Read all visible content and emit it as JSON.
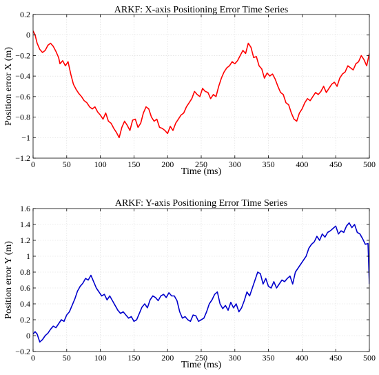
{
  "chart_data": [
    {
      "type": "line",
      "title": "ARKF: X-axis Positioning Error Time Series",
      "xlabel": "Time (ms)",
      "ylabel": "Position error X (m)",
      "xlim": [
        0,
        500
      ],
      "ylim": [
        -1.2,
        0.2
      ],
      "xticks": [
        0,
        50,
        100,
        150,
        200,
        250,
        300,
        350,
        400,
        450,
        500
      ],
      "yticks": [
        -1.2,
        -1,
        -0.8,
        -0.6,
        -0.4,
        -0.2,
        0,
        0.2
      ],
      "xtick_labels": [
        "0",
        "50",
        "100",
        "150",
        "200",
        "250",
        "300",
        "350",
        "400",
        "450",
        "500"
      ],
      "ytick_labels": [
        "−1.2",
        "−1",
        "−0.8",
        "−0.6",
        "−0.4",
        "−0.2",
        "0",
        "0.2"
      ],
      "grid": true,
      "color": "#ff0000",
      "series": [
        {
          "x": [
            0,
            3,
            6,
            10,
            14,
            18,
            22,
            26,
            30,
            34,
            38,
            40,
            44,
            48,
            52,
            56,
            60,
            64,
            68,
            72,
            76,
            80,
            84,
            88,
            92,
            96,
            100,
            104,
            108,
            112,
            116,
            120,
            124,
            128,
            132,
            136,
            140,
            144,
            148,
            152,
            156,
            160,
            164,
            168,
            172,
            176,
            180,
            184,
            188,
            192,
            196,
            200,
            204,
            208,
            212,
            216,
            220,
            224,
            228,
            232,
            236,
            240,
            244,
            248,
            252,
            256,
            260,
            264,
            268,
            272,
            276,
            280,
            284,
            288,
            292,
            296,
            300,
            304,
            308,
            312,
            316,
            320,
            324,
            328,
            332,
            336,
            340,
            344,
            348,
            352,
            356,
            360,
            364,
            368,
            372,
            376,
            380,
            384,
            388,
            392,
            396,
            400,
            404,
            408,
            412,
            416,
            420,
            424,
            428,
            432,
            436,
            440,
            444,
            448,
            452,
            456,
            460,
            464,
            468,
            472,
            476,
            480,
            484,
            488,
            492,
            496,
            500
          ],
          "y": [
            0.04,
            0.0,
            -0.08,
            -0.14,
            -0.17,
            -0.15,
            -0.1,
            -0.08,
            -0.11,
            -0.16,
            -0.22,
            -0.28,
            -0.25,
            -0.3,
            -0.26,
            -0.38,
            -0.48,
            -0.53,
            -0.57,
            -0.6,
            -0.64,
            -0.66,
            -0.7,
            -0.72,
            -0.7,
            -0.75,
            -0.78,
            -0.82,
            -0.76,
            -0.84,
            -0.86,
            -0.91,
            -0.95,
            -1.0,
            -0.9,
            -0.84,
            -0.88,
            -0.93,
            -0.83,
            -0.82,
            -0.9,
            -0.86,
            -0.76,
            -0.7,
            -0.72,
            -0.8,
            -0.84,
            -0.82,
            -0.9,
            -0.91,
            -0.93,
            -0.96,
            -0.89,
            -0.93,
            -0.86,
            -0.82,
            -0.78,
            -0.76,
            -0.7,
            -0.66,
            -0.62,
            -0.55,
            -0.58,
            -0.6,
            -0.52,
            -0.55,
            -0.56,
            -0.62,
            -0.58,
            -0.6,
            -0.5,
            -0.42,
            -0.36,
            -0.32,
            -0.3,
            -0.26,
            -0.28,
            -0.25,
            -0.2,
            -0.15,
            -0.18,
            -0.08,
            -0.12,
            -0.22,
            -0.21,
            -0.3,
            -0.33,
            -0.42,
            -0.37,
            -0.4,
            -0.38,
            -0.43,
            -0.5,
            -0.56,
            -0.58,
            -0.66,
            -0.68,
            -0.76,
            -0.82,
            -0.84,
            -0.76,
            -0.72,
            -0.66,
            -0.62,
            -0.64,
            -0.6,
            -0.56,
            -0.58,
            -0.55,
            -0.5,
            -0.56,
            -0.52,
            -0.48,
            -0.46,
            -0.5,
            -0.42,
            -0.38,
            -0.36,
            -0.3,
            -0.32,
            -0.34,
            -0.28,
            -0.26,
            -0.2,
            -0.24,
            -0.3,
            -0.18
          ]
        }
      ]
    },
    {
      "type": "line",
      "title": "ARKF: Y-axis Positioning Error Time Series",
      "xlabel": "Time (ms)",
      "ylabel": "Position error Y (m)",
      "xlim": [
        0,
        500
      ],
      "ylim": [
        -0.2,
        1.6
      ],
      "xticks": [
        0,
        50,
        100,
        150,
        200,
        250,
        300,
        350,
        400,
        450,
        500
      ],
      "yticks": [
        -0.2,
        0,
        0.2,
        0.4,
        0.6,
        0.8,
        1,
        1.2,
        1.4,
        1.6
      ],
      "xtick_labels": [
        "0",
        "50",
        "100",
        "150",
        "200",
        "250",
        "300",
        "350",
        "400",
        "450",
        "500"
      ],
      "ytick_labels": [
        "−0.2",
        "0",
        "0.2",
        "0.4",
        "0.6",
        "0.8",
        "1",
        "1.2",
        "1.4",
        "1.6"
      ],
      "grid": true,
      "color": "#0000cc",
      "series": [
        {
          "x": [
            0,
            3,
            6,
            10,
            14,
            18,
            22,
            26,
            30,
            34,
            38,
            42,
            46,
            50,
            54,
            58,
            62,
            66,
            70,
            74,
            78,
            82,
            86,
            90,
            94,
            98,
            102,
            106,
            110,
            114,
            118,
            122,
            126,
            130,
            134,
            138,
            142,
            146,
            150,
            154,
            158,
            162,
            166,
            170,
            174,
            178,
            182,
            186,
            190,
            194,
            198,
            202,
            206,
            210,
            214,
            218,
            222,
            226,
            230,
            234,
            238,
            242,
            246,
            250,
            254,
            258,
            262,
            266,
            270,
            274,
            278,
            282,
            286,
            290,
            294,
            298,
            302,
            306,
            310,
            314,
            318,
            322,
            326,
            330,
            334,
            338,
            342,
            346,
            350,
            354,
            358,
            362,
            366,
            370,
            374,
            378,
            382,
            386,
            390,
            394,
            398,
            402,
            406,
            410,
            414,
            418,
            422,
            426,
            430,
            434,
            438,
            442,
            446,
            450,
            454,
            458,
            462,
            466,
            470,
            474,
            478,
            482,
            486,
            490,
            494,
            498,
            500
          ],
          "y": [
            0.02,
            0.05,
            0.02,
            -0.08,
            -0.05,
            0.0,
            0.03,
            0.08,
            0.12,
            0.1,
            0.15,
            0.2,
            0.18,
            0.26,
            0.3,
            0.38,
            0.46,
            0.56,
            0.62,
            0.66,
            0.72,
            0.7,
            0.76,
            0.68,
            0.6,
            0.55,
            0.5,
            0.52,
            0.45,
            0.5,
            0.44,
            0.38,
            0.32,
            0.28,
            0.3,
            0.26,
            0.22,
            0.24,
            0.18,
            0.2,
            0.28,
            0.36,
            0.4,
            0.35,
            0.45,
            0.5,
            0.48,
            0.44,
            0.5,
            0.52,
            0.48,
            0.54,
            0.5,
            0.5,
            0.44,
            0.3,
            0.22,
            0.24,
            0.2,
            0.18,
            0.26,
            0.25,
            0.18,
            0.2,
            0.22,
            0.3,
            0.4,
            0.45,
            0.52,
            0.55,
            0.4,
            0.34,
            0.38,
            0.32,
            0.42,
            0.35,
            0.4,
            0.3,
            0.35,
            0.44,
            0.55,
            0.5,
            0.6,
            0.7,
            0.8,
            0.78,
            0.65,
            0.72,
            0.62,
            0.6,
            0.68,
            0.6,
            0.65,
            0.7,
            0.68,
            0.72,
            0.75,
            0.65,
            0.8,
            0.85,
            0.9,
            0.95,
            1.0,
            1.1,
            1.15,
            1.18,
            1.25,
            1.2,
            1.28,
            1.24,
            1.3,
            1.32,
            1.35,
            1.38,
            1.28,
            1.32,
            1.3,
            1.38,
            1.42,
            1.36,
            1.4,
            1.3,
            1.28,
            1.22,
            1.15,
            1.16,
            0.65
          ]
        }
      ]
    }
  ]
}
